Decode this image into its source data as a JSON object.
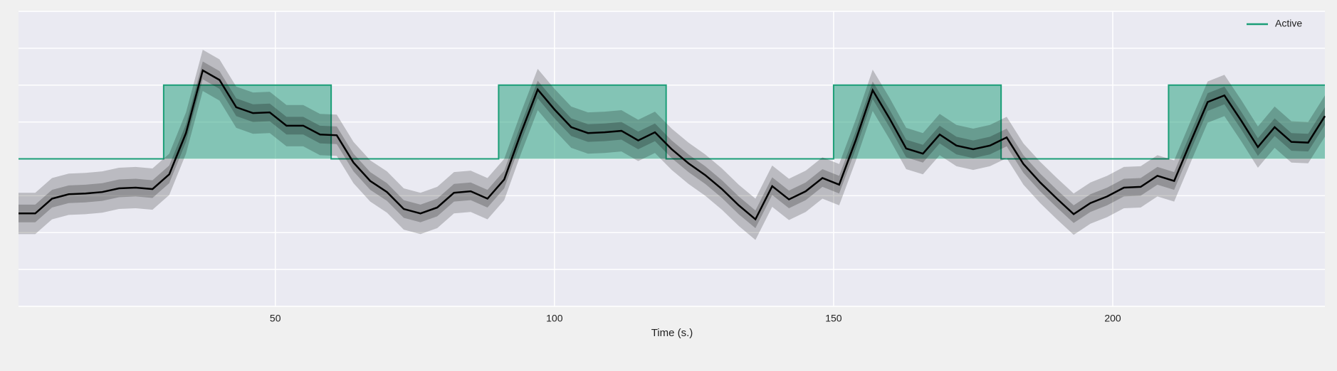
{
  "chart_data": {
    "type": "line",
    "xlabel": "Time (s.)",
    "xlim": [
      4,
      238
    ],
    "xticks": [
      50,
      100,
      150,
      200
    ],
    "ylim": [
      -2,
      2
    ],
    "yticks": [
      -2,
      -1.5,
      -1,
      -0.5,
      0,
      0.5,
      1,
      1.5,
      2
    ],
    "grid": true,
    "legend": "upper right",
    "series": [
      {
        "name": "Active",
        "color": "#1b9e77",
        "fill": true,
        "x": [
          4,
          30,
          30,
          60,
          60,
          90,
          90,
          120,
          120,
          150,
          150,
          180,
          180,
          210,
          210,
          238
        ],
        "values": [
          0,
          0,
          1,
          1,
          0,
          0,
          1,
          1,
          0,
          0,
          1,
          1,
          0,
          0,
          1,
          1
        ]
      },
      {
        "color": "#000000",
        "ci_inner": 0.12,
        "ci_outer": 0.28,
        "x": [
          4,
          7,
          10,
          13,
          16,
          19,
          22,
          25,
          28,
          31,
          34,
          37,
          40,
          43,
          46,
          49,
          52,
          55,
          58,
          61,
          64,
          67,
          70,
          73,
          76,
          79,
          82,
          85,
          88,
          91,
          94,
          97,
          100,
          103,
          106,
          109,
          112,
          115,
          118,
          121,
          124,
          127,
          130,
          133,
          136,
          139,
          142,
          145,
          148,
          151,
          154,
          157,
          160,
          163,
          166,
          169,
          172,
          175,
          178,
          181,
          184,
          187,
          190,
          193,
          196,
          199,
          202,
          205,
          208,
          211,
          214,
          217,
          220,
          223,
          226,
          229,
          232,
          235,
          238
        ],
        "values": [
          -0.74,
          -0.74,
          -0.54,
          -0.48,
          -0.47,
          -0.45,
          -0.4,
          -0.39,
          -0.41,
          -0.21,
          0.35,
          1.2,
          1.07,
          0.7,
          0.62,
          0.63,
          0.45,
          0.45,
          0.33,
          0.32,
          -0.05,
          -0.3,
          -0.45,
          -0.68,
          -0.74,
          -0.66,
          -0.46,
          -0.44,
          -0.54,
          -0.28,
          0.35,
          0.94,
          0.67,
          0.43,
          0.35,
          0.36,
          0.38,
          0.25,
          0.36,
          0.13,
          -0.06,
          -0.22,
          -0.41,
          -0.63,
          -0.82,
          -0.37,
          -0.55,
          -0.44,
          -0.26,
          -0.35,
          0.26,
          0.93,
          0.55,
          0.14,
          0.07,
          0.33,
          0.18,
          0.13,
          0.18,
          0.29,
          -0.07,
          -0.32,
          -0.54,
          -0.75,
          -0.6,
          -0.51,
          -0.39,
          -0.38,
          -0.23,
          -0.3,
          0.24,
          0.77,
          0.86,
          0.52,
          0.16,
          0.43,
          0.23,
          0.22,
          0.58
        ]
      }
    ]
  }
}
